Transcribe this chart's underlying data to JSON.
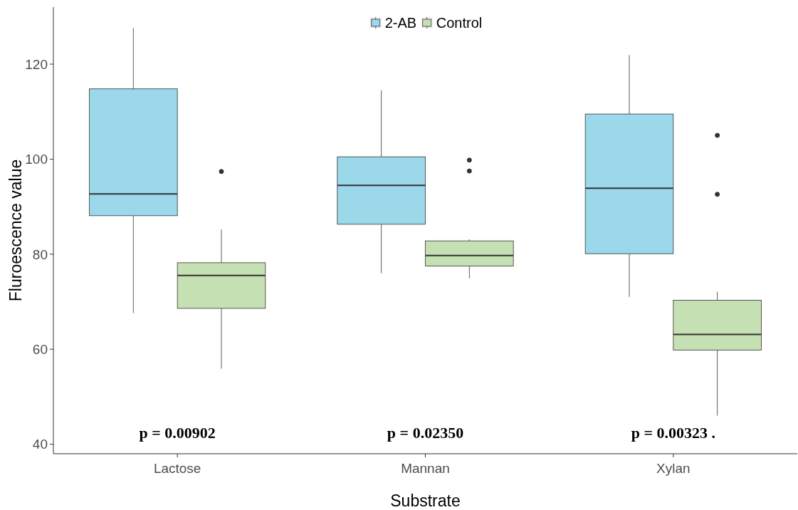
{
  "chart_data": {
    "type": "box",
    "xlabel": "Substrate",
    "ylabel": "Fluroescence value",
    "categories": [
      "Lactose",
      "Mannan",
      "Xylan"
    ],
    "ylim": [
      38,
      132
    ],
    "yticks": [
      40,
      60,
      80,
      100,
      120
    ],
    "grid": false,
    "legend": "top",
    "series": [
      {
        "name": "2-AB",
        "color": "#9ad8ea",
        "boxes": [
          {
            "low": 67.6,
            "q1": 88.1,
            "median": 92.7,
            "q3": 114.8,
            "high": 127.6
          },
          {
            "low": 76.0,
            "q1": 86.3,
            "median": 94.5,
            "q3": 100.5,
            "high": 114.5
          },
          {
            "low": 71.0,
            "q1": 80.1,
            "median": 93.9,
            "q3": 109.5,
            "high": 121.9
          }
        ]
      },
      {
        "name": "Control",
        "color": "#c5e0b3",
        "boxes": [
          {
            "low": 55.9,
            "q1": 68.6,
            "median": 75.5,
            "q3": 78.2,
            "high": 85.2,
            "outliers": [
              97.4
            ]
          },
          {
            "low": 74.9,
            "q1": 77.5,
            "median": 79.7,
            "q3": 82.8,
            "high": 83.1,
            "outliers": [
              99.8,
              97.5
            ]
          },
          {
            "low": 46.0,
            "q1": 59.8,
            "median": 63.1,
            "q3": 70.3,
            "high": 72.1,
            "outliers": [
              105.0,
              92.6
            ]
          }
        ]
      }
    ],
    "annotations": [
      "p = 0.00902",
      "p = 0.02350",
      "p = 0.00323 ."
    ]
  }
}
